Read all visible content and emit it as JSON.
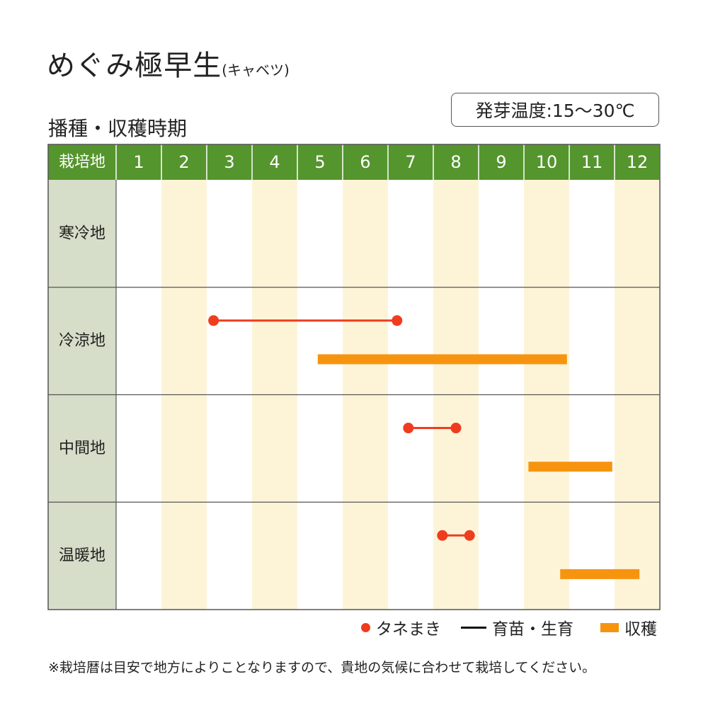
{
  "title": "めぐみ極早生",
  "title_sub": "(キャベツ)",
  "subtitle": "播種・収穫時期",
  "temperature": "発芽温度:15〜30℃",
  "colors": {
    "header_green": "#55952d",
    "region_col": "#d6ddc8",
    "stripe": "#fdf4d8",
    "sowing": "#f03c1e",
    "harvest": "#f7940f"
  },
  "legend": {
    "sowing": "タネまき",
    "seedling": "育苗・生育",
    "harvest": "収穫"
  },
  "note": "※栽培暦は目安で地方によりことなりますので、貴地の気候に合わせて栽培してください。",
  "chart_data": {
    "type": "table",
    "row_header_label": "栽培地",
    "months": [
      "1",
      "2",
      "3",
      "4",
      "5",
      "6",
      "7",
      "8",
      "9",
      "10",
      "11",
      "12"
    ],
    "regions": [
      {
        "name": "寒冷地",
        "sowing": null,
        "harvest": null
      },
      {
        "name": "冷涼地",
        "sowing": [
          3.15,
          7.2
        ],
        "harvest": [
          5.45,
          10.95
        ]
      },
      {
        "name": "中間地",
        "sowing": [
          7.45,
          8.5
        ],
        "harvest": [
          10.1,
          11.95
        ]
      },
      {
        "name": "温暖地",
        "sowing": [
          8.2,
          8.8
        ],
        "harvest": [
          10.8,
          12.55
        ]
      }
    ],
    "grid": true
  }
}
